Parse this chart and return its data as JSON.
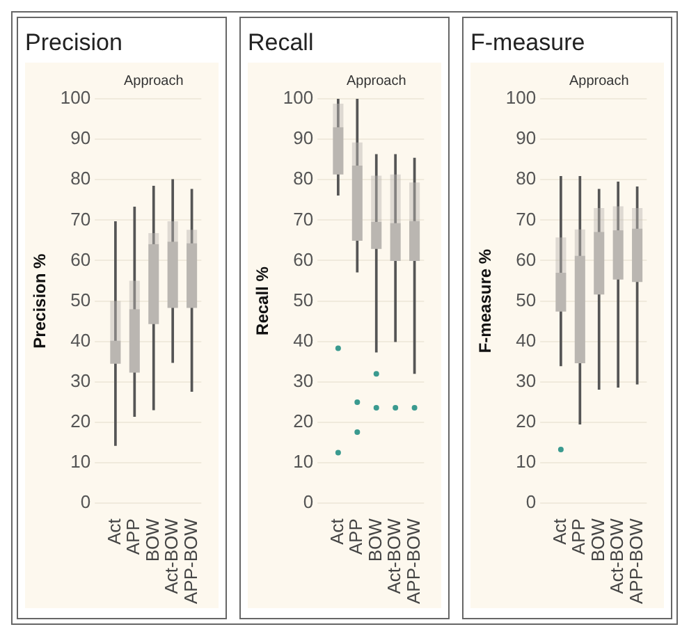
{
  "chart_data": [
    {
      "type": "box",
      "title": "Precision",
      "xlabel": "Approach",
      "ylabel": "Precision %",
      "categories": [
        "Act",
        "APP",
        "BOW",
        "Act-BOW",
        "APP-BOW"
      ],
      "color": "#bab6b1",
      "ylim": [
        0,
        100
      ],
      "yticks": [
        0,
        10,
        20,
        30,
        40,
        50,
        60,
        70,
        80,
        90,
        100
      ],
      "grid": "y",
      "boxes": [
        {
          "low": 14.3,
          "q1": 34.5,
          "median": 40.2,
          "q3": 50,
          "high": 69.6
        },
        {
          "low": 21.5,
          "q1": 32.3,
          "median": 48,
          "q3": 55,
          "high": 73.2
        },
        {
          "low": 23.1,
          "q1": 44.3,
          "median": 64.1,
          "q3": 66.8,
          "high": 78.4
        },
        {
          "low": 34.8,
          "q1": 48.3,
          "median": 64.7,
          "q3": 69.7,
          "high": 80
        },
        {
          "low": 27.7,
          "q1": 48.3,
          "median": 64.3,
          "q3": 67.6,
          "high": 77.6
        }
      ]
    },
    {
      "type": "box",
      "title": "Recall",
      "xlabel": "Approach",
      "ylabel": "Recall %",
      "categories": [
        "Act",
        "APP",
        "BOW",
        "Act-BOW",
        "APP-BOW"
      ],
      "color": "#bab6b1",
      "ylim": [
        0,
        100
      ],
      "yticks": [
        0,
        10,
        20,
        30,
        40,
        50,
        60,
        70,
        80,
        90,
        100
      ],
      "grid": "y",
      "boxes": [
        {
          "low": 76.2,
          "q1": 81.3,
          "median": 93,
          "q3": 98.8,
          "high": 100,
          "outliers": [
            38.3,
            12.5
          ]
        },
        {
          "low": 57.2,
          "q1": 64.9,
          "median": 83.5,
          "q3": 89.2,
          "high": 100,
          "outliers": [
            25,
            17.6
          ]
        },
        {
          "low": 37.4,
          "q1": 62.9,
          "median": 69.6,
          "q3": 81,
          "high": 86.2,
          "outliers": [
            32,
            23.6
          ]
        },
        {
          "low": 40,
          "q1": 59.9,
          "median": 69.3,
          "q3": 81.3,
          "high": 86.2,
          "outliers": [
            23.6
          ]
        },
        {
          "low": 32.1,
          "q1": 59.9,
          "median": 69.8,
          "q3": 79.3,
          "high": 85.3,
          "outliers": [
            23.6
          ]
        }
      ]
    },
    {
      "type": "box",
      "title": "F-measure",
      "xlabel": "Approach",
      "ylabel": "F-measure %",
      "categories": [
        "Act",
        "APP",
        "BOW",
        "Act-BOW",
        "APP-BOW"
      ],
      "color": "#bab6b1",
      "ylim": [
        0,
        100
      ],
      "yticks": [
        0,
        10,
        20,
        30,
        40,
        50,
        60,
        70,
        80,
        90,
        100
      ],
      "grid": "y",
      "boxes": [
        {
          "low": 34,
          "q1": 47.4,
          "median": 57,
          "q3": 65.7,
          "high": 80.8,
          "outliers": [
            13.3
          ]
        },
        {
          "low": 19.6,
          "q1": 34.6,
          "median": 61.2,
          "q3": 67.7,
          "high": 80.8
        },
        {
          "low": 28.2,
          "q1": 51.6,
          "median": 67.1,
          "q3": 73,
          "high": 77.6
        },
        {
          "low": 28.7,
          "q1": 55.3,
          "median": 67.5,
          "q3": 73.4,
          "high": 79.4
        },
        {
          "low": 29.5,
          "q1": 54.7,
          "median": 67.9,
          "q3": 73,
          "high": 78.2
        }
      ]
    }
  ]
}
